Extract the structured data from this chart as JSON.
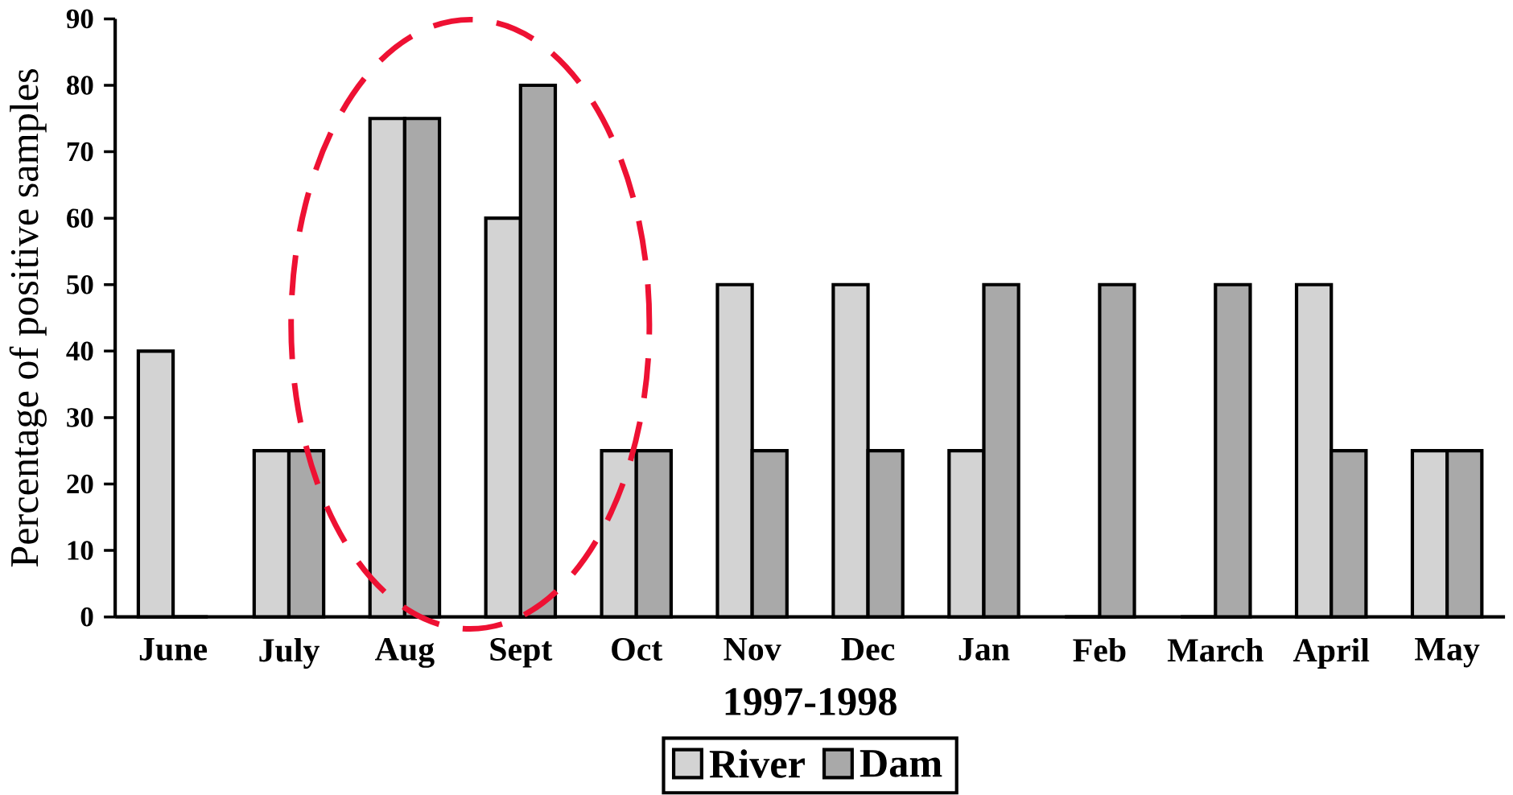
{
  "chart_data": {
    "type": "bar",
    "xlabel": "1997-1998",
    "ylabel": "Percentage of positive samples",
    "categories": [
      "June",
      "July",
      "Aug",
      "Sept",
      "Oct",
      "Nov",
      "Dec",
      "Jan",
      "Feb",
      "March",
      "April",
      "May"
    ],
    "series": [
      {
        "name": "River",
        "color": "#d3d3d3",
        "values": [
          40,
          25,
          75,
          60,
          25,
          50,
          50,
          25,
          0,
          0,
          50,
          25
        ]
      },
      {
        "name": "Dam",
        "color": "#a9a9a9",
        "values": [
          0,
          25,
          75,
          80,
          25,
          25,
          25,
          50,
          50,
          50,
          25,
          25
        ]
      }
    ],
    "ylim": [
      0,
      90
    ],
    "yticks": [
      0,
      10,
      20,
      30,
      40,
      50,
      60,
      70,
      80,
      90
    ],
    "grid": false,
    "legend": "bottom"
  }
}
